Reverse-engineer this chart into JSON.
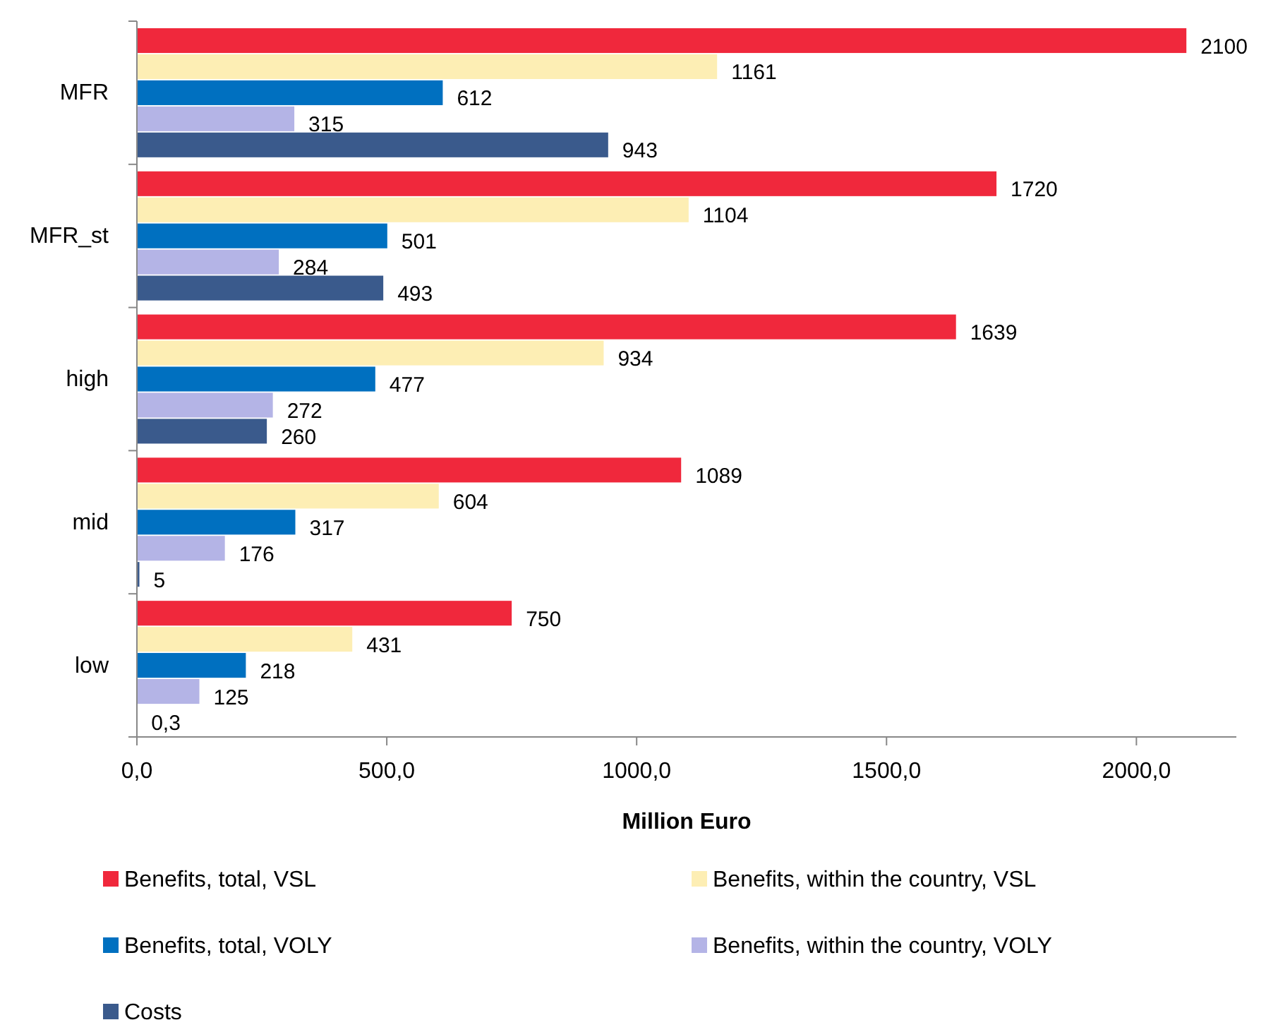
{
  "chart_data": {
    "type": "bar",
    "orientation": "horizontal",
    "xlabel": "Million Euro",
    "categories": [
      "MFR",
      "MFR_st",
      "high",
      "mid",
      "low"
    ],
    "series": [
      {
        "name": "Benefits, total, VSL",
        "color": "#f0283c",
        "values": [
          2100,
          1720,
          1639,
          1089,
          750
        ],
        "value_labels": [
          "2100",
          "1720",
          "1639",
          "1089",
          "750"
        ]
      },
      {
        "name": "Benefits, within the country, VSL",
        "color": "#fdeeb4",
        "values": [
          1161,
          1104,
          934,
          604,
          431
        ],
        "value_labels": [
          "1161",
          "1104",
          "934",
          "604",
          "431"
        ]
      },
      {
        "name": "Benefits, total, VOLY",
        "color": "#0070c0",
        "values": [
          612,
          501,
          477,
          317,
          218
        ],
        "value_labels": [
          "612",
          "501",
          "477",
          "317",
          "218"
        ]
      },
      {
        "name": "Benefits, within the country, VOLY",
        "color": "#b4b4e6",
        "values": [
          315,
          284,
          272,
          176,
          125
        ],
        "value_labels": [
          "315",
          "284",
          "272",
          "176",
          "125"
        ]
      },
      {
        "name": "Costs",
        "color": "#3a5a8c",
        "values": [
          943,
          493,
          260,
          5,
          0.3
        ],
        "value_labels": [
          "943",
          "493",
          "260",
          "5",
          "0,3"
        ]
      }
    ],
    "xlim": [
      0,
      2200
    ],
    "xticks": [
      {
        "value": 0,
        "label": "0,0"
      },
      {
        "value": 500,
        "label": "500,0"
      },
      {
        "value": 1000,
        "label": "1000,0"
      },
      {
        "value": 1500,
        "label": "1500,0"
      },
      {
        "value": 2000,
        "label": "2000,0"
      }
    ],
    "grid": false,
    "legend": "bottom"
  }
}
